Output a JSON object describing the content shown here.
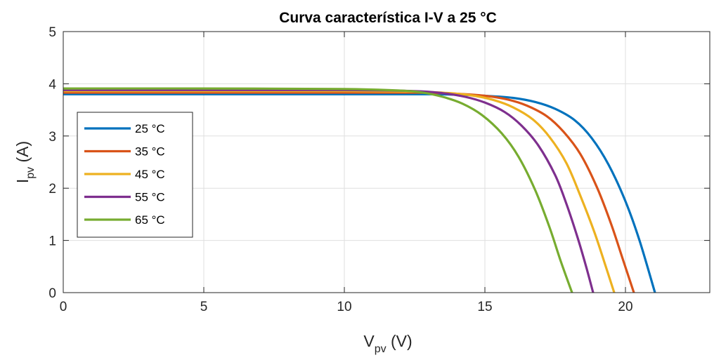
{
  "chart_data": {
    "type": "line",
    "title": "Curva característica I-V a 25 °C",
    "xlabel": {
      "main": "V",
      "sub": "pv",
      "unit": " (V)"
    },
    "ylabel": {
      "main": "I",
      "sub": "pv",
      "unit": " (A)"
    },
    "xlim": [
      0,
      23
    ],
    "ylim": [
      0,
      5
    ],
    "xticks": [
      0,
      5,
      10,
      15,
      20
    ],
    "yticks": [
      0,
      1,
      2,
      3,
      4,
      5
    ],
    "grid": true,
    "legend_position": "left",
    "series": [
      {
        "name": "25 °C",
        "color": "#0072BD",
        "x": [
          0,
          5,
          10,
          13,
          14,
          15,
          16,
          16.8,
          17.5,
          18.2,
          18.8,
          19.4,
          20,
          20.5,
          21.05
        ],
        "y": [
          3.8,
          3.8,
          3.8,
          3.8,
          3.79,
          3.77,
          3.73,
          3.65,
          3.52,
          3.3,
          2.96,
          2.45,
          1.75,
          1.0,
          0
        ]
      },
      {
        "name": "35 °C",
        "color": "#D95319",
        "x": [
          0,
          5,
          10,
          12.5,
          14,
          15,
          15.8,
          16.5,
          17.2,
          17.8,
          18.4,
          19,
          19.5,
          19.9,
          20.3
        ],
        "y": [
          3.83,
          3.83,
          3.83,
          3.83,
          3.81,
          3.77,
          3.7,
          3.58,
          3.38,
          3.08,
          2.65,
          2.0,
          1.3,
          0.65,
          0
        ]
      },
      {
        "name": "45 °C",
        "color": "#EDB120",
        "x": [
          0,
          5,
          10,
          12.5,
          13.5,
          14.5,
          15.3,
          16,
          16.7,
          17.3,
          17.9,
          18.4,
          18.9,
          19.3,
          19.6
        ],
        "y": [
          3.86,
          3.86,
          3.86,
          3.85,
          3.83,
          3.78,
          3.69,
          3.55,
          3.32,
          2.98,
          2.48,
          1.85,
          1.15,
          0.5,
          0
        ]
      },
      {
        "name": "55 °C",
        "color": "#7E2F8E",
        "x": [
          0,
          5,
          10,
          12.5,
          13.5,
          14.3,
          15,
          15.7,
          16.3,
          16.9,
          17.5,
          17.9,
          18.3,
          18.6,
          18.85
        ],
        "y": [
          3.88,
          3.88,
          3.88,
          3.86,
          3.82,
          3.75,
          3.64,
          3.46,
          3.2,
          2.82,
          2.25,
          1.7,
          1.05,
          0.5,
          0
        ]
      },
      {
        "name": "65 °C",
        "color": "#77AC30",
        "x": [
          0,
          5,
          10,
          12,
          12.8,
          13.5,
          14.2,
          14.9,
          15.6,
          16.2,
          16.8,
          17.3,
          17.7,
          18.1
        ],
        "y": [
          3.91,
          3.91,
          3.9,
          3.87,
          3.83,
          3.75,
          3.62,
          3.4,
          3.05,
          2.6,
          1.95,
          1.25,
          0.6,
          0
        ]
      }
    ]
  }
}
